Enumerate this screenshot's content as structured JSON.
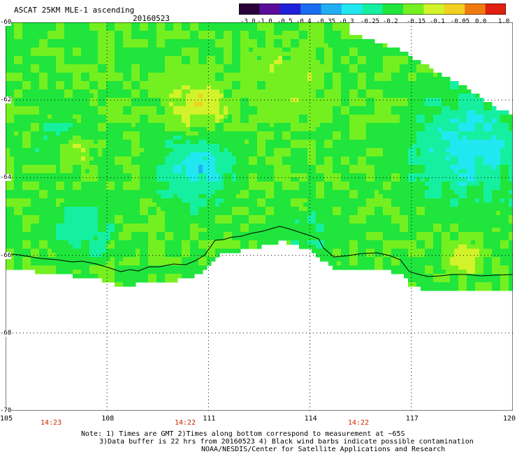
{
  "header": {
    "title": "ASCAT 25KM MLE-1 ascending",
    "date": "20160523"
  },
  "colorbar": {
    "labels": [
      "-3.0",
      "-1.0",
      "-0.5",
      "-0.4",
      "-0.35",
      "-0.3",
      "-0.25",
      "-0.2",
      "-0.15",
      "-0.1",
      "-0.05",
      "0.0",
      "1.0"
    ],
    "colors": [
      "#2a0038",
      "#5a0c9a",
      "#2020d8",
      "#1a6cf0",
      "#22aef5",
      "#21e8f0",
      "#15f0a0",
      "#1fe53c",
      "#74f020",
      "#d2f22a",
      "#f0d020",
      "#f07a10",
      "#e02010"
    ]
  },
  "map": {
    "lat_labels": [
      "-60",
      "-62",
      "-64",
      "-66",
      "-68",
      "-70"
    ],
    "lon_labels": [
      "105",
      "108",
      "111",
      "114",
      "117",
      "120"
    ],
    "time_labels": [
      "14:23",
      "14:22",
      "14:22"
    ],
    "coastline_color": "#000000",
    "grid_style": "dotted"
  },
  "footer": {
    "note_line1": "Note: 1) Times are GMT 2)Times along bottom correspond to measurement at ~65S",
    "note_line2": "3)Data buffer is 22 hrs from 20160523 4) Black wind barbs indicate possible contamination",
    "note_line3": "NOAA/NESDIS/Center for Satellite Applications and Research"
  }
}
